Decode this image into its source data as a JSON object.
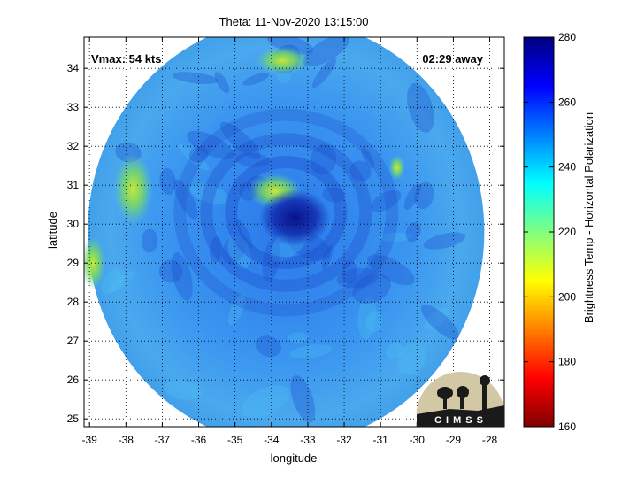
{
  "title": "Theta: 11-Nov-2020 13:15:00",
  "annotations": {
    "vmax": "Vmax: 54 kts",
    "time_away": "02:29 away"
  },
  "logo": {
    "text": "CIMSS"
  },
  "colors": {
    "ocean_base": "#2f86ee",
    "warm_band": "#9adf4a",
    "eye_dark": "#0a1d9a",
    "outside_map": "#ffffff"
  },
  "chart_data": {
    "type": "heatmap",
    "title": "Theta: 11-Nov-2020 13:15:00",
    "xlabel": "longitude",
    "ylabel": "latitude",
    "xlim": [
      -39.15,
      -27.6
    ],
    "ylim": [
      24.8,
      34.8
    ],
    "xticks": [
      -39,
      -38,
      -37,
      -36,
      -35,
      -34,
      -33,
      -32,
      -31,
      -30,
      -29,
      -28
    ],
    "yticks": [
      25,
      26,
      27,
      28,
      29,
      30,
      31,
      32,
      33,
      34
    ],
    "grid": true,
    "footprint": {
      "center_lon": -33.6,
      "center_lat": 29.8,
      "radius_deg": 5.45
    },
    "storm_center": {
      "lon": -33.6,
      "lat": 30.3
    },
    "colorbar": {
      "label": "Brightness Temp - Horizontal Polarization",
      "min": 160,
      "max": 280,
      "ticks": [
        160,
        180,
        200,
        220,
        240,
        260,
        280
      ],
      "colormap": "jet"
    }
  }
}
